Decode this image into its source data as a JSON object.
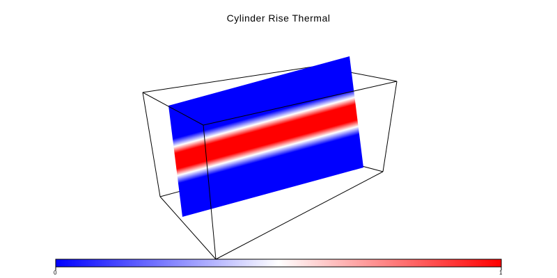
{
  "title": "Cylinder Rise Thermal",
  "colorbar": {
    "min_label": "0",
    "max_label": "1",
    "low_color": "#0000ff",
    "mid_color": "#ffffff",
    "high_color": "#ff0000"
  },
  "bounding_box_color": "#000000"
}
